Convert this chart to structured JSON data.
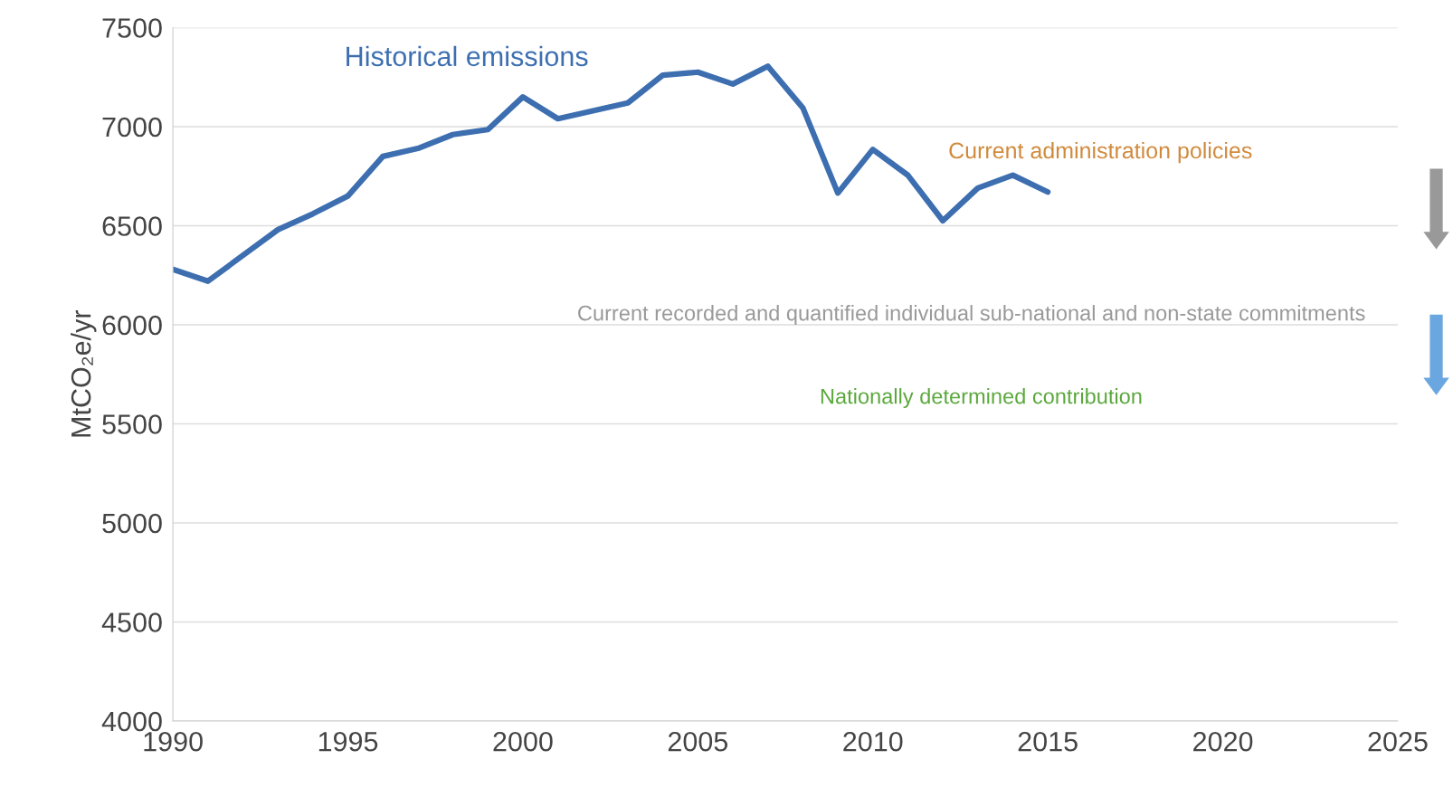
{
  "chart_data": {
    "type": "line",
    "ylabel": "MtCO₂e/yr",
    "x": [
      1990,
      1991,
      1992,
      1993,
      1994,
      1995,
      1996,
      1997,
      1998,
      1999,
      2000,
      2001,
      2002,
      2003,
      2004,
      2005,
      2006,
      2007,
      2008,
      2009,
      2010,
      2011,
      2012,
      2013,
      2014,
      2015
    ],
    "series": [
      {
        "name": "Historical emissions",
        "color": "#3d6fb0",
        "values": [
          6280,
          6220,
          6350,
          6480,
          6560,
          6650,
          6850,
          6890,
          6960,
          6985,
          7150,
          7040,
          7080,
          7120,
          7260,
          7275,
          7215,
          7305,
          7095,
          6665,
          6885,
          6755,
          6525,
          6690,
          6755,
          6670
        ]
      }
    ],
    "annotations": [
      "Current administration policies",
      "Current recorded and quantified individual sub-national and non-state commitments",
      "Nationally determined contribution"
    ],
    "xlim": [
      1990,
      2025
    ],
    "xticks": [
      1990,
      1995,
      2000,
      2005,
      2010,
      2015,
      2020,
      2025
    ],
    "ylim": [
      4000,
      7500
    ],
    "yticks": [
      4000,
      4500,
      5000,
      5500,
      6000,
      6500,
      7000,
      7500
    ],
    "grid": "y",
    "legend": false,
    "marker": "none",
    "line_style": "solid"
  }
}
